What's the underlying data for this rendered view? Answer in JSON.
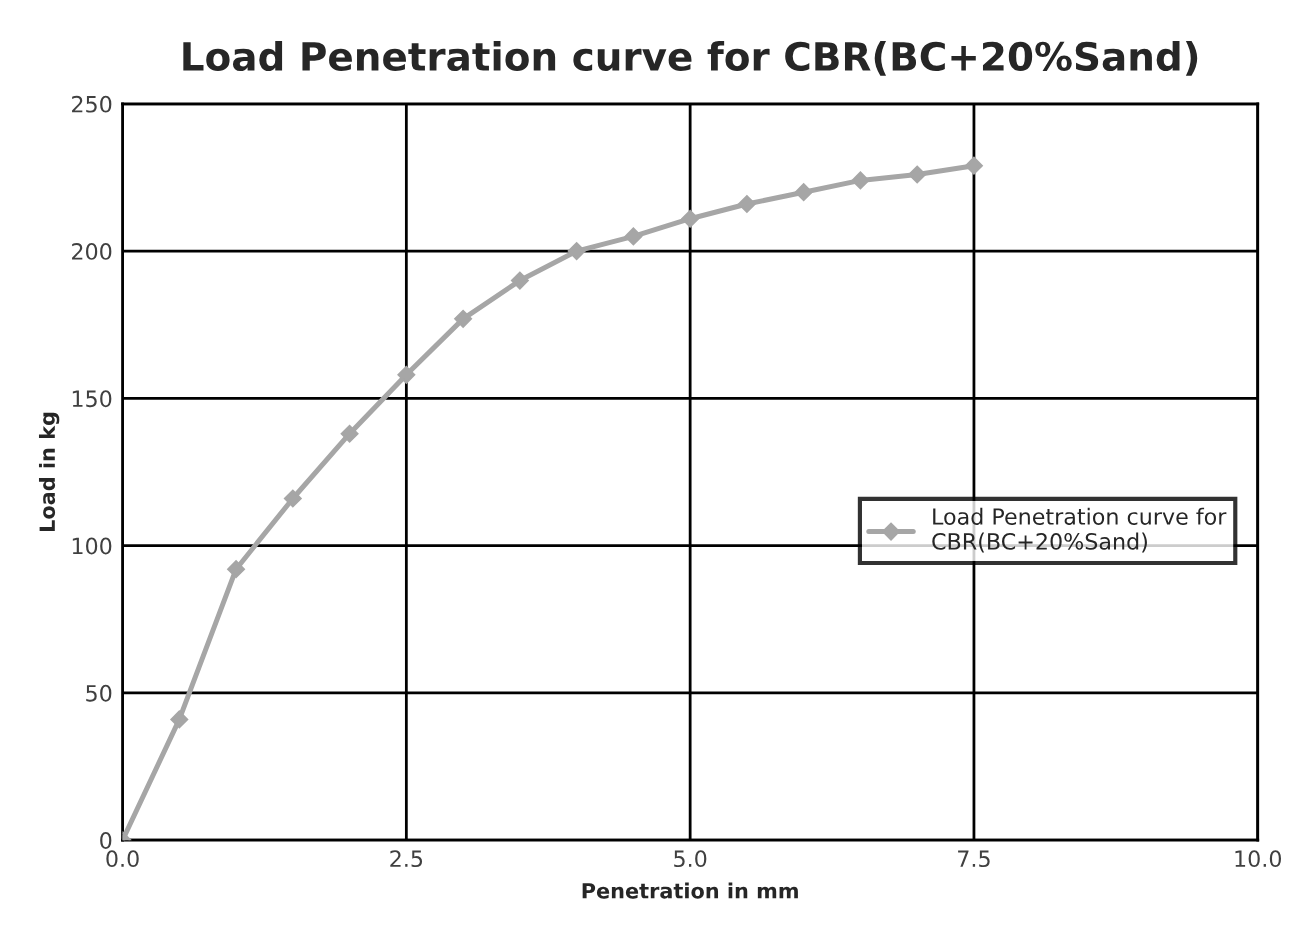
{
  "chart_data": {
    "type": "line",
    "title": "Load Penetration curve for CBR(BC+20%Sand)",
    "xlabel": "Penetration in mm",
    "ylabel": "Load in kg",
    "x": [
      0,
      0.5,
      1,
      1.5,
      2,
      2.5,
      3,
      3.5,
      4,
      4.5,
      5,
      5.5,
      6,
      6.5,
      7,
      7.5
    ],
    "series": [
      {
        "name": "Load Penetration curve for\nCBR(BC+20%Sand)",
        "color": "#a6a6a6",
        "values": [
          0,
          41,
          92,
          116,
          138,
          158,
          177,
          190,
          200,
          205,
          211,
          216,
          220,
          224,
          226,
          229
        ]
      }
    ],
    "xlim": [
      0,
      10
    ],
    "xticks": [
      {
        "value": 0,
        "label": "0.0"
      },
      {
        "value": 2.5,
        "label": "2.5"
      },
      {
        "value": 5,
        "label": "5.0"
      },
      {
        "value": 7.5,
        "label": "7.5"
      },
      {
        "value": 10,
        "label": "10.0"
      }
    ],
    "ylim": [
      0,
      250
    ],
    "yticks": [
      0,
      50,
      100,
      150,
      200,
      250
    ],
    "grid": true,
    "legend": "right",
    "marker": "diamond",
    "line_style": "solid"
  }
}
